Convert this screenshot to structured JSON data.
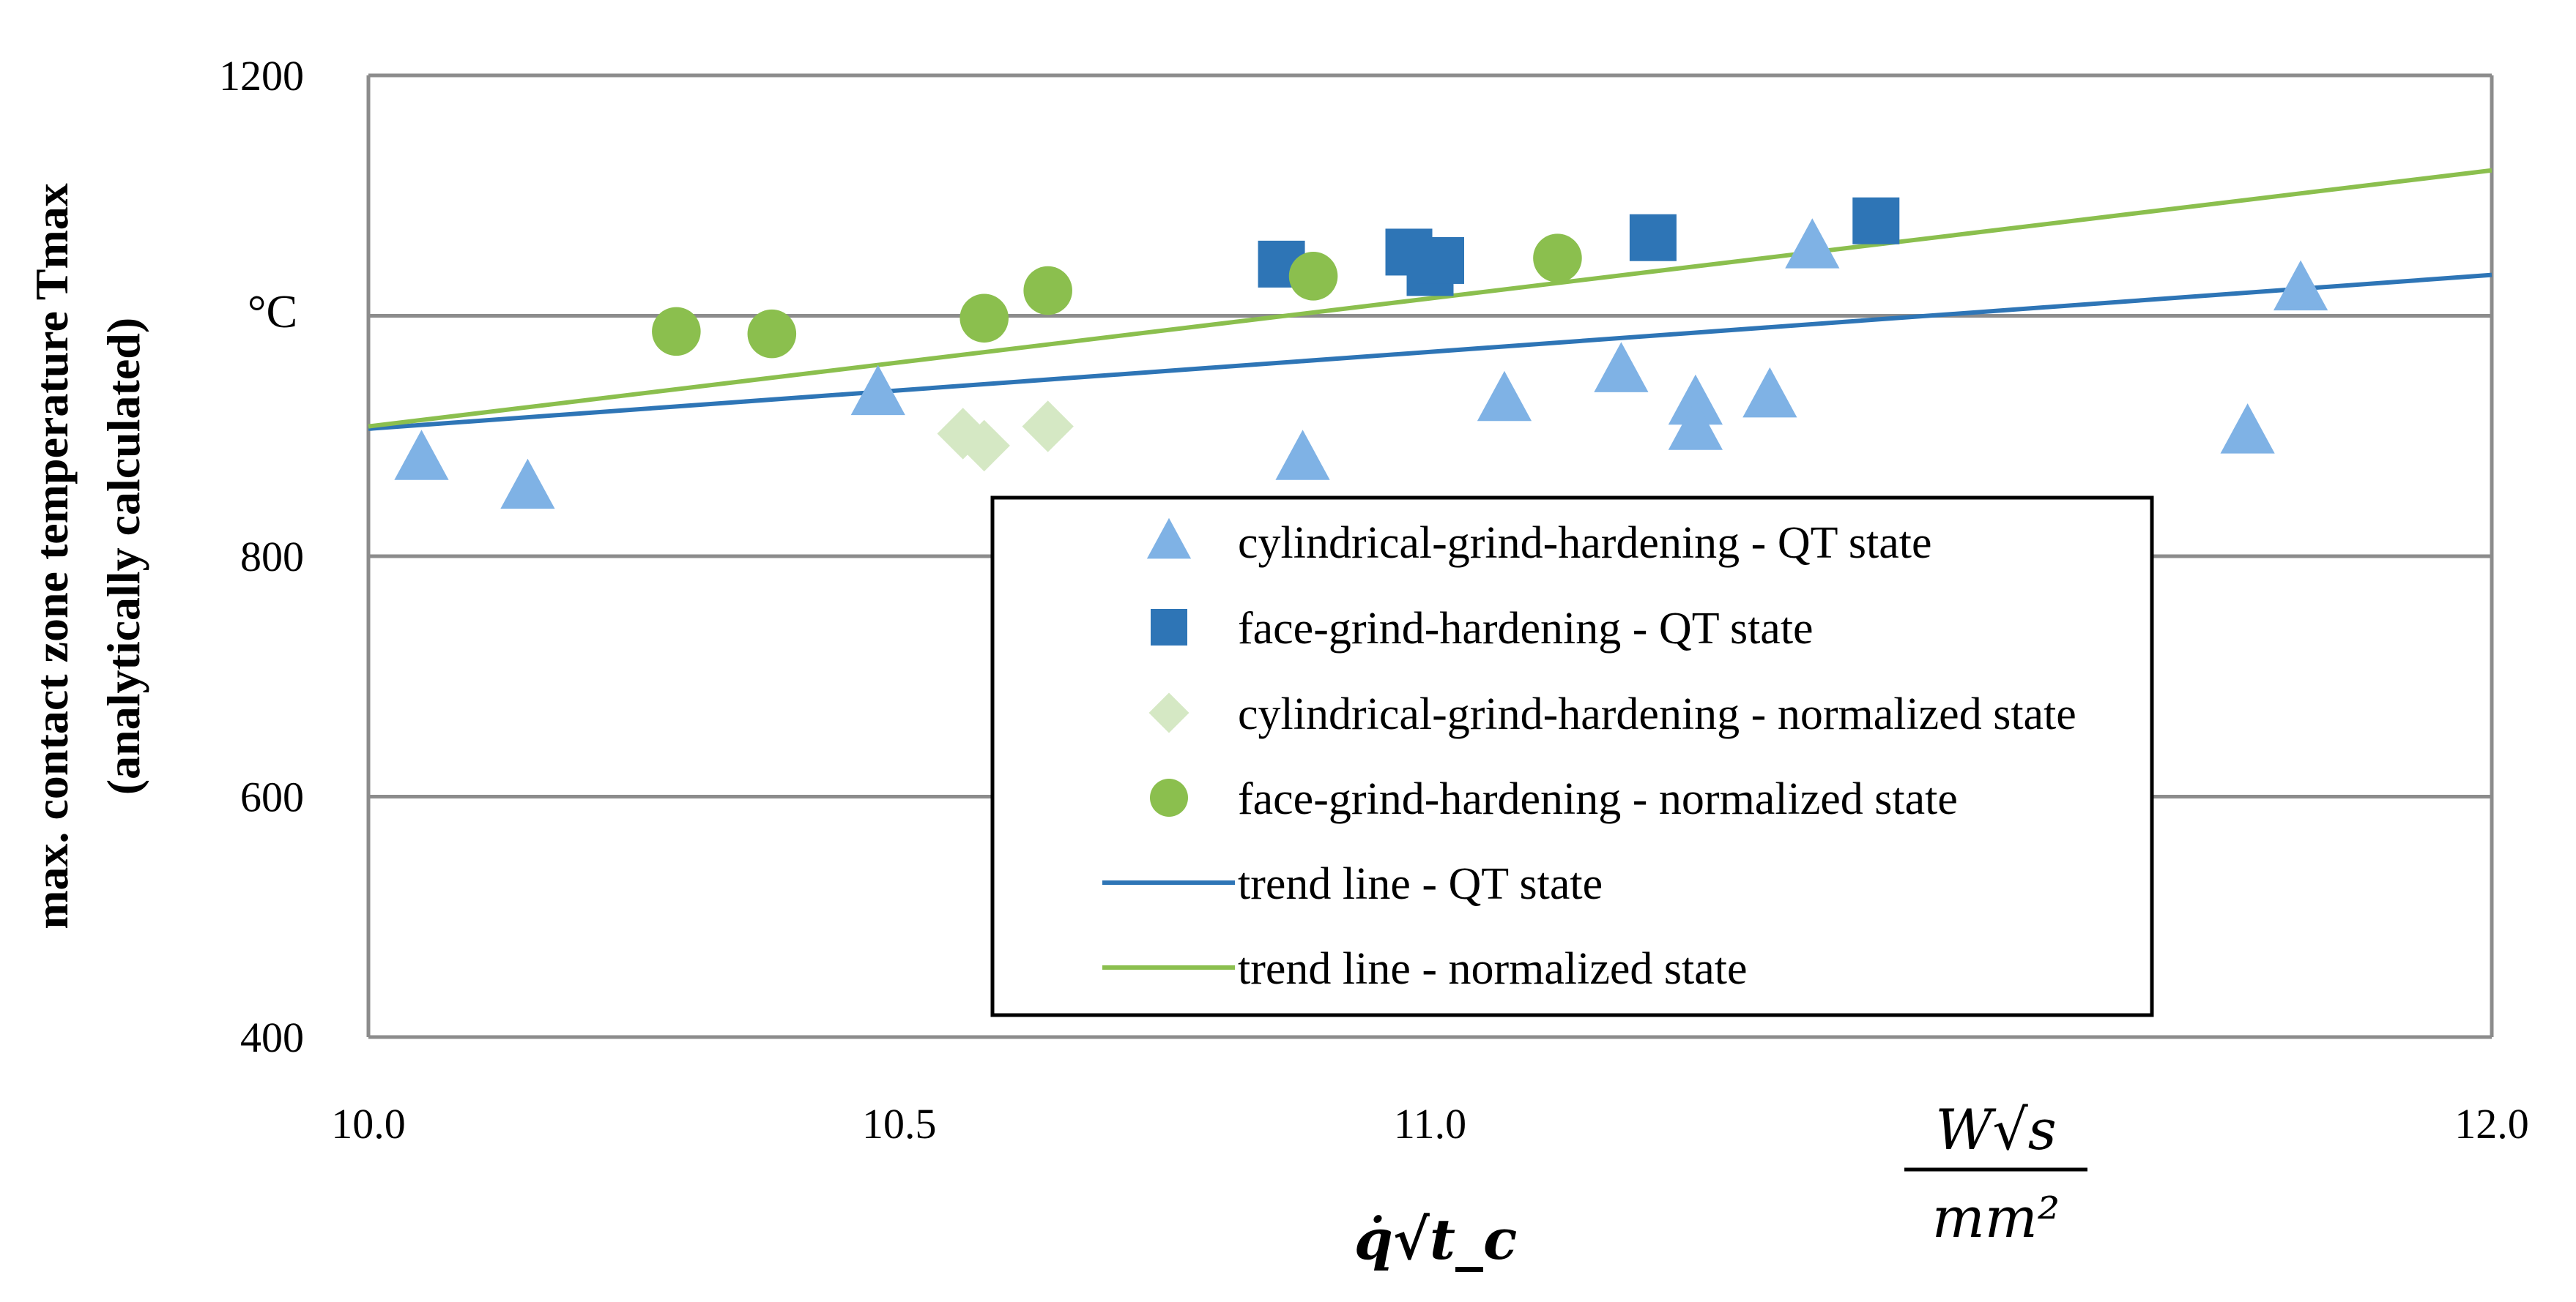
{
  "chart_data": {
    "type": "scatter",
    "title": "",
    "xlabel": "q̇√t_c",
    "ylabel_line1": "max. contact zone temperature Tmax",
    "ylabel_line2": "(analytically calculated)",
    "y_unit": "°C",
    "x_unit_numerator": "W√s",
    "x_unit_denominator": "mm²",
    "xlim": [
      10.0,
      12.0
    ],
    "ylim": [
      400,
      1200
    ],
    "x_ticks": [
      "10.0",
      "10.5",
      "11.0",
      "12.0"
    ],
    "x_tick_values": [
      10.0,
      10.5,
      11.0,
      12.0
    ],
    "y_ticks": [
      "400",
      "600",
      "800",
      "1200"
    ],
    "y_tick_values": [
      400,
      600,
      800,
      1200
    ],
    "gridlines_y": [
      600,
      800,
      1000,
      1200
    ],
    "legend_position": "center-right",
    "series": [
      {
        "name": "cylindrical-grind-hardening - QT state",
        "marker": "triangle",
        "color": "#7FB2E5",
        "points": [
          [
            10.05,
            881
          ],
          [
            10.15,
            857
          ],
          [
            10.48,
            935
          ],
          [
            10.88,
            881
          ],
          [
            11.07,
            930
          ],
          [
            11.18,
            954
          ],
          [
            11.25,
            927
          ],
          [
            11.25,
            906
          ],
          [
            11.32,
            933
          ],
          [
            11.36,
            1057
          ],
          [
            11.77,
            903
          ],
          [
            11.82,
            1022
          ]
        ]
      },
      {
        "name": "face-grind-hardening - QT state",
        "marker": "square",
        "color": "#2E75B6",
        "points": [
          [
            10.86,
            1043
          ],
          [
            10.98,
            1053
          ],
          [
            11.0,
            1036
          ],
          [
            11.01,
            1046
          ],
          [
            11.21,
            1065
          ],
          [
            11.42,
            1079
          ]
        ]
      },
      {
        "name": "cylindrical-grind-hardening - normalized state",
        "marker": "diamond",
        "color": "#D5E8C4",
        "points": [
          [
            10.56,
            902
          ],
          [
            10.58,
            892
          ],
          [
            10.64,
            908
          ]
        ]
      },
      {
        "name": "face-grind-hardening - normalized state",
        "marker": "circle",
        "color": "#8BBF4E",
        "points": [
          [
            10.29,
            987
          ],
          [
            10.38,
            985
          ],
          [
            10.58,
            998
          ],
          [
            10.64,
            1021
          ],
          [
            10.89,
            1033
          ],
          [
            11.12,
            1048
          ]
        ]
      }
    ],
    "trend_lines": [
      {
        "name": "trend line - QT state",
        "color": "#2E75B6",
        "points": [
          [
            10.0,
            906
          ],
          [
            12.0,
            1034
          ]
        ]
      },
      {
        "name": "trend line - normalized state",
        "color": "#8BBF4E",
        "points": [
          [
            10.0,
            908
          ],
          [
            12.0,
            1121
          ]
        ]
      }
    ]
  }
}
